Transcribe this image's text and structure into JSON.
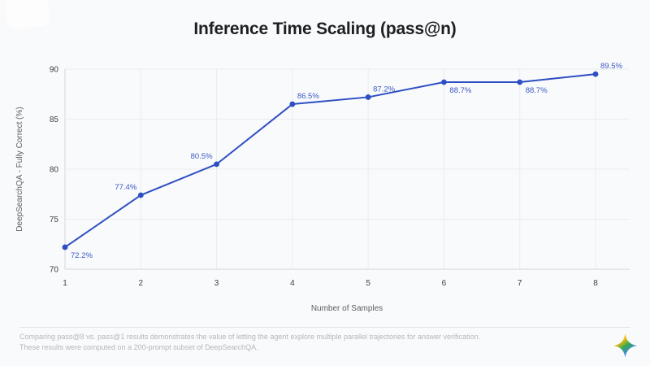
{
  "page": {
    "title": "Inference Time Scaling (pass@n)",
    "footer_line1": "Comparing pass@8 vs. pass@1 results demonstrates the value of letting the agent explore multiple parallel trajectories for answer verification.",
    "footer_line2": "These results were computed on a 200-prompt subset of DeepSearchQA.",
    "logo": "gemini-sparkle"
  },
  "colors": {
    "background": "#f9fafb",
    "line": "#2e4fc3",
    "data_label": "#3b59c6",
    "title_text": "#1d1f23",
    "tick_text": "#3d4043",
    "axis_label_text": "#5a5e63",
    "gridline": "#ececef",
    "axis_line": "#d4d6da",
    "footer_text": "#b3b7bd",
    "divider": "#e4e5e7",
    "gemini_red": "#EA4335",
    "gemini_yellow": "#FBBC04",
    "gemini_green": "#34A853",
    "gemini_blue": "#4285F4"
  },
  "chart_data": {
    "type": "line",
    "title": "Inference Time Scaling (pass@n)",
    "x": [
      1,
      2,
      3,
      4,
      5,
      6,
      7,
      8
    ],
    "values": [
      72.2,
      77.4,
      80.5,
      86.5,
      87.2,
      88.7,
      88.7,
      89.5
    ],
    "point_labels": [
      "72.2%",
      "77.4%",
      "80.5%",
      "86.5%",
      "87.2%",
      "88.7%",
      "88.7%",
      "89.5%"
    ],
    "label_placement": [
      "below-right",
      "above-left",
      "above-left",
      "above-right",
      "above-right",
      "below-right",
      "below-right",
      "above-right"
    ],
    "xlabel": "Number of Samples",
    "ylabel": "DeepSearchQA - Fully Correct (%)",
    "ylim": [
      70,
      90
    ],
    "yticks": [
      70,
      75,
      80,
      85,
      90
    ],
    "xticks": [
      1,
      2,
      3,
      4,
      5,
      6,
      7,
      8
    ],
    "grid": true,
    "legend": false,
    "series_color": "#2e4fc3"
  }
}
